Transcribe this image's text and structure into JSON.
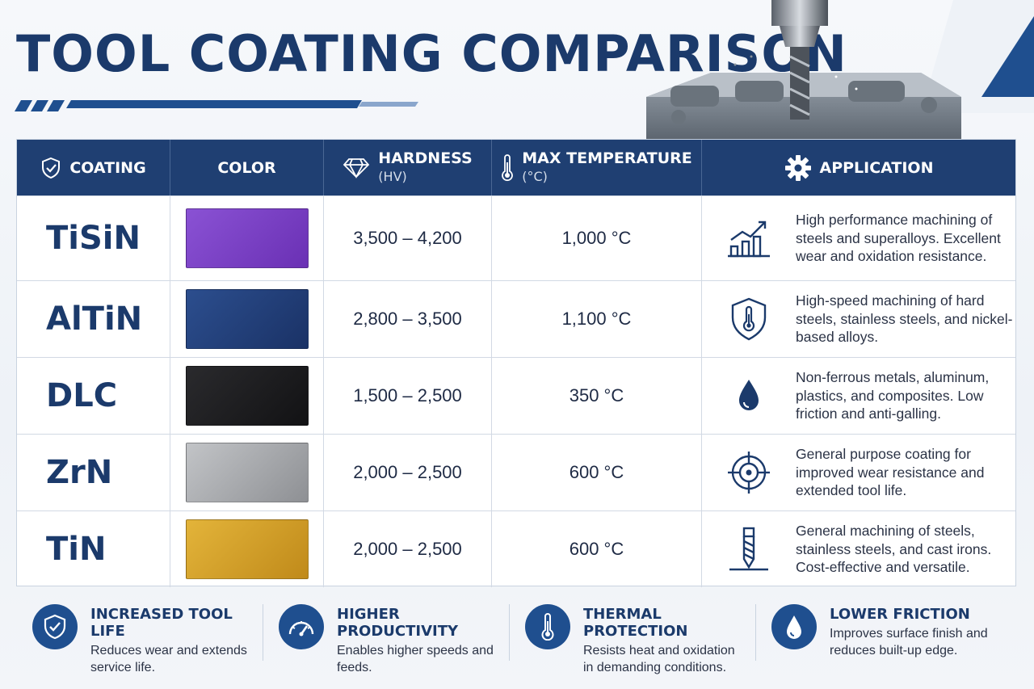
{
  "title": "TOOL COATING COMPARISON",
  "table": {
    "headers": {
      "coating": "COATING",
      "color": "COLOR",
      "hardness": "HARDNESS",
      "hardness_unit": "(HV)",
      "max_temp": "MAX TEMPERATURE",
      "max_temp_unit": "(°C)",
      "application": "APPLICATION"
    },
    "rows": [
      {
        "name": "TiSiN",
        "swatch": "#7a3fc4",
        "hardness": "3,500 – 4,200",
        "temp": "1,000 °C",
        "application": "High performance machining of steels and superalloys. Excellent wear and oxidation resistance.",
        "icon": "growth-chart-icon"
      },
      {
        "name": "AlTiN",
        "swatch": "#24427d",
        "hardness": "2,800 – 3,500",
        "temp": "1,100 °C",
        "application": "High-speed machining of hard steels, stainless steels, and nickel-based alloys.",
        "icon": "shield-thermometer-icon"
      },
      {
        "name": "DLC",
        "swatch": "#1c1c1e",
        "hardness": "1,500 – 2,500",
        "temp": "350 °C",
        "application": "Non-ferrous metals, aluminum, plastics, and composites. Low friction and anti-galling.",
        "icon": "drop-icon"
      },
      {
        "name": "ZrN",
        "swatch": "#a4a6aa",
        "hardness": "2,000 – 2,500",
        "temp": "600 °C",
        "application": "General purpose coating for improved wear resistance and extended tool life.",
        "icon": "target-icon"
      },
      {
        "name": "TiN",
        "swatch": "#d9a62a",
        "hardness": "2,000 – 2,500",
        "temp": "600 °C",
        "application": "General machining of steels, stainless steels, and cast irons. Cost-effective and versatile.",
        "icon": "drill-bit-icon"
      }
    ]
  },
  "features": [
    {
      "title": "INCREASED TOOL LIFE",
      "desc": "Reduces wear and extends service life.",
      "icon": "shield-check-icon"
    },
    {
      "title": "HIGHER PRODUCTIVITY",
      "desc": "Enables higher speeds and feeds.",
      "icon": "speedometer-icon"
    },
    {
      "title": "THERMAL PROTECTION",
      "desc": "Resists heat and oxidation in demanding conditions.",
      "icon": "thermometer-icon"
    },
    {
      "title": "LOWER FRICTION",
      "desc": "Improves surface finish and reduces built-up edge.",
      "icon": "drop-icon"
    }
  ],
  "colors": {
    "navy": "#1f3f72",
    "accent": "#1f4f8f",
    "title": "#1b3a6b"
  }
}
